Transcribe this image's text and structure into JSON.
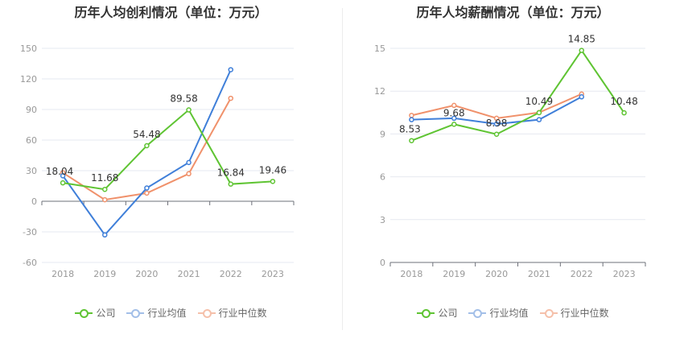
{
  "chart_data": [
    {
      "type": "line",
      "title": "历年人均创利情况（单位：万元）",
      "categories": [
        "2018",
        "2019",
        "2020",
        "2021",
        "2022",
        "2023"
      ],
      "ylim": [
        -60,
        150
      ],
      "yticks": [
        "150",
        "120",
        "90",
        "60",
        "30",
        "0",
        "-30",
        "-60"
      ],
      "ytick_values": [
        150,
        120,
        90,
        60,
        30,
        0,
        -30,
        -60
      ],
      "series": [
        {
          "name": "公司",
          "color": "#5fc433",
          "values": [
            18.04,
            11.68,
            54.48,
            89.58,
            16.84,
            19.46
          ],
          "labels": [
            "18.04",
            "11.68",
            "54.48",
            "89.58",
            "16.84",
            "19.46"
          ]
        },
        {
          "name": "行业均值",
          "color": "#3f7fd9",
          "values": [
            25,
            -33,
            13,
            38,
            129,
            null
          ]
        },
        {
          "name": "行业中位数",
          "color": "#f0916b",
          "values": [
            28,
            1.5,
            8,
            27,
            101,
            null
          ]
        }
      ],
      "grid": true,
      "legend": "bottom-center"
    },
    {
      "type": "line",
      "title": "历年人均薪酬情况（单位：万元）",
      "categories": [
        "2018",
        "2019",
        "2020",
        "2021",
        "2022",
        "2023"
      ],
      "ylim": [
        0,
        15
      ],
      "yticks": [
        "15",
        "12",
        "9",
        "6",
        "3",
        "0"
      ],
      "ytick_values": [
        15,
        12,
        9,
        6,
        3,
        0
      ],
      "series": [
        {
          "name": "公司",
          "color": "#5fc433",
          "values": [
            8.53,
            9.68,
            8.98,
            10.49,
            14.85,
            10.48
          ],
          "labels": [
            "8.53",
            "9.68",
            "8.98",
            "10.49",
            "14.85",
            "10.48"
          ]
        },
        {
          "name": "行业均值",
          "color": "#3f7fd9",
          "values": [
            10.0,
            10.1,
            9.7,
            10.0,
            11.6,
            null
          ]
        },
        {
          "name": "行业中位数",
          "color": "#f0916b",
          "values": [
            10.3,
            11.0,
            10.1,
            10.5,
            11.8,
            null
          ]
        }
      ],
      "grid": true,
      "legend": "bottom-center"
    }
  ]
}
